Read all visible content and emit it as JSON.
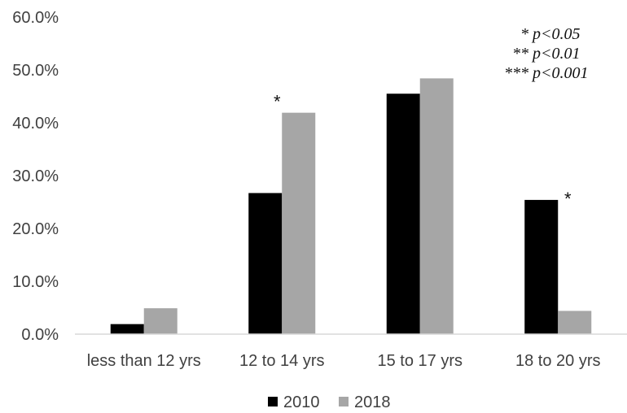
{
  "chart_data": {
    "type": "bar",
    "categories": [
      "less than 12 yrs",
      "12 to 14 yrs",
      "15 to 17 yrs",
      "18 to 20 yrs"
    ],
    "series": [
      {
        "name": "2010",
        "values": [
          1.9,
          26.7,
          45.5,
          25.4
        ],
        "color": "#000000"
      },
      {
        "name": "2018",
        "values": [
          4.9,
          41.9,
          48.4,
          4.4
        ],
        "color": "#a6a6a6"
      }
    ],
    "ylim": [
      0,
      60
    ],
    "y_ticks": [
      0,
      10,
      20,
      30,
      40,
      50,
      60
    ],
    "y_tick_labels": [
      "0.0%",
      "10.0%",
      "20.0%",
      "30.0%",
      "40.0%",
      "50.0%",
      "60.0%"
    ],
    "xlabel": "",
    "ylabel": "",
    "title": "",
    "grid": false,
    "legend_position": "bottom",
    "significance_marks": [
      {
        "category_index": 1,
        "series_index": 1,
        "mark": "*"
      },
      {
        "category_index": 3,
        "series_index": 0,
        "mark": "*"
      }
    ],
    "significance_legend": [
      {
        "stars": "*",
        "text": "p<0.05"
      },
      {
        "stars": "**",
        "text": "p<0.01"
      },
      {
        "stars": "***",
        "text": "p<0.001"
      }
    ]
  }
}
